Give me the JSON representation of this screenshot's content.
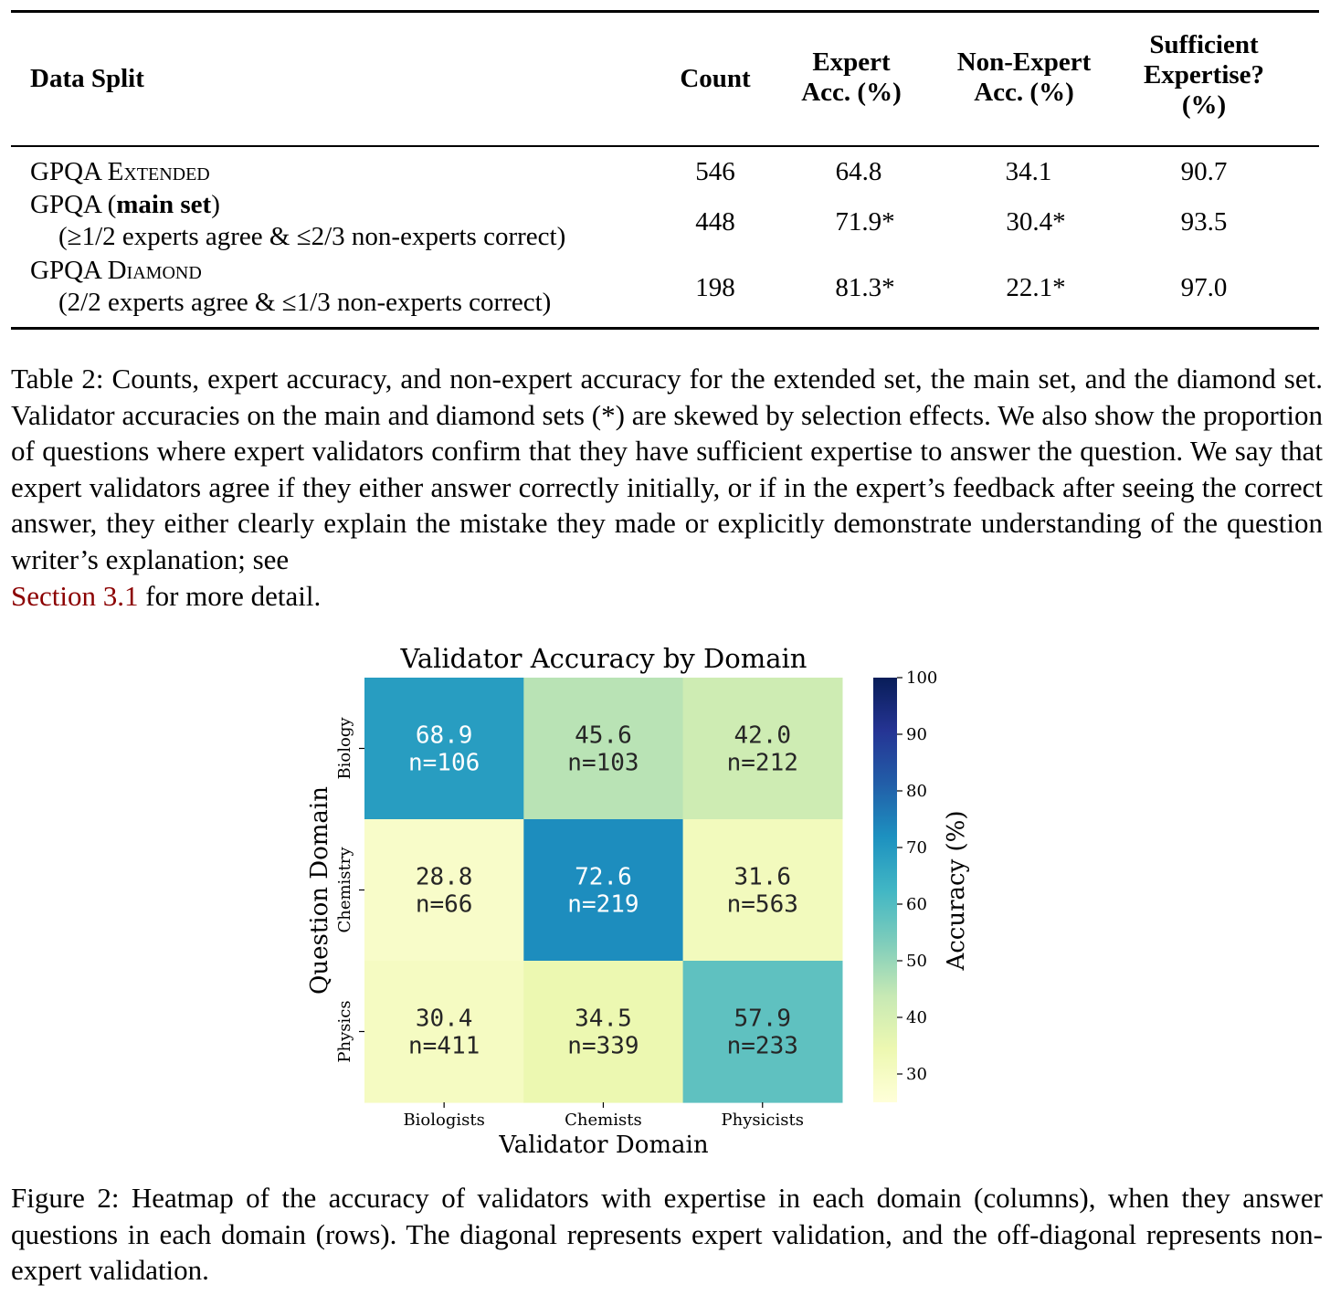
{
  "table": {
    "headers": {
      "data_split": "Data Split",
      "count": "Count",
      "expert_acc": [
        "Expert",
        "Acc. (%)"
      ],
      "nonexpert_acc": [
        "Non-Expert",
        "Acc. (%)"
      ],
      "sufficient": [
        "Sufficient",
        "Expertise?",
        "(%)"
      ]
    },
    "rows": [
      {
        "name_prefix": "GPQA ",
        "name_sc": "Extended",
        "name_bold": "",
        "subtext": "",
        "count": "546",
        "expert": "64.8",
        "nonexpert": "34.1",
        "sufficient": "90.7"
      },
      {
        "name_prefix": "GPQA (",
        "name_sc": "",
        "name_bold": "main set",
        "name_suffix": ")",
        "subtext": "(≥1/2 experts agree & ≤2/3 non-experts correct)",
        "count": "448",
        "expert": "71.9*",
        "nonexpert": "30.4*",
        "sufficient": "93.5"
      },
      {
        "name_prefix": "GPQA ",
        "name_sc": "Diamond",
        "name_bold": "",
        "subtext": "(2/2 experts agree & ≤1/3 non-experts correct)",
        "count": "198",
        "expert": "81.3*",
        "nonexpert": "22.1*",
        "sufficient": "97.0"
      }
    ]
  },
  "table_caption": {
    "text": "Table 2: Counts, expert accuracy, and non-expert accuracy for the extended set, the main set, and the diamond set. Validator accuracies on the main and diamond sets (*) are skewed by selection effects. We also show the proportion of questions where expert validators confirm that they have sufficient expertise to answer the question. We say that expert validators agree if they either answer correctly initially, or if in the expert’s feedback after seeing the correct answer, they either clearly explain the mistake they made or explicitly demonstrate understanding of the question writer’s explanation; see",
    "link": "Section 3.1",
    "tail": " for more detail."
  },
  "figure_caption": "Figure 2: Heatmap of the accuracy of validators with expertise in each domain (columns), when they answer questions in each domain (rows). The diagonal represents expert validation, and the off-diagonal represents non-expert validation.",
  "chart_data": {
    "type": "heatmap",
    "title": "Validator Accuracy by Domain",
    "xlabel": "Validator Domain",
    "ylabel": "Question Domain",
    "x_categories": [
      "Biologists",
      "Chemists",
      "Physicists"
    ],
    "y_categories": [
      "Biology",
      "Chemistry",
      "Physics"
    ],
    "values": [
      [
        68.9,
        45.6,
        42.0
      ],
      [
        28.8,
        72.6,
        31.6
      ],
      [
        30.4,
        34.5,
        57.9
      ]
    ],
    "n": [
      [
        "n=106",
        "n=103",
        "n=212"
      ],
      [
        "n=66",
        "n=219",
        "n=563"
      ],
      [
        "n=411",
        "n=339",
        "n=233"
      ]
    ],
    "colorbar": {
      "label": "Accuracy (%)",
      "range": [
        25,
        100
      ],
      "ticks": [
        30,
        40,
        50,
        60,
        70,
        80,
        90,
        100
      ],
      "colormap": "YlGnBu",
      "colors": [
        "#ffffd9",
        "#edf8b1",
        "#c7e9b4",
        "#7fcdbb",
        "#41b6c4",
        "#1d91c0",
        "#225ea8",
        "#253494",
        "#081d58"
      ]
    }
  }
}
